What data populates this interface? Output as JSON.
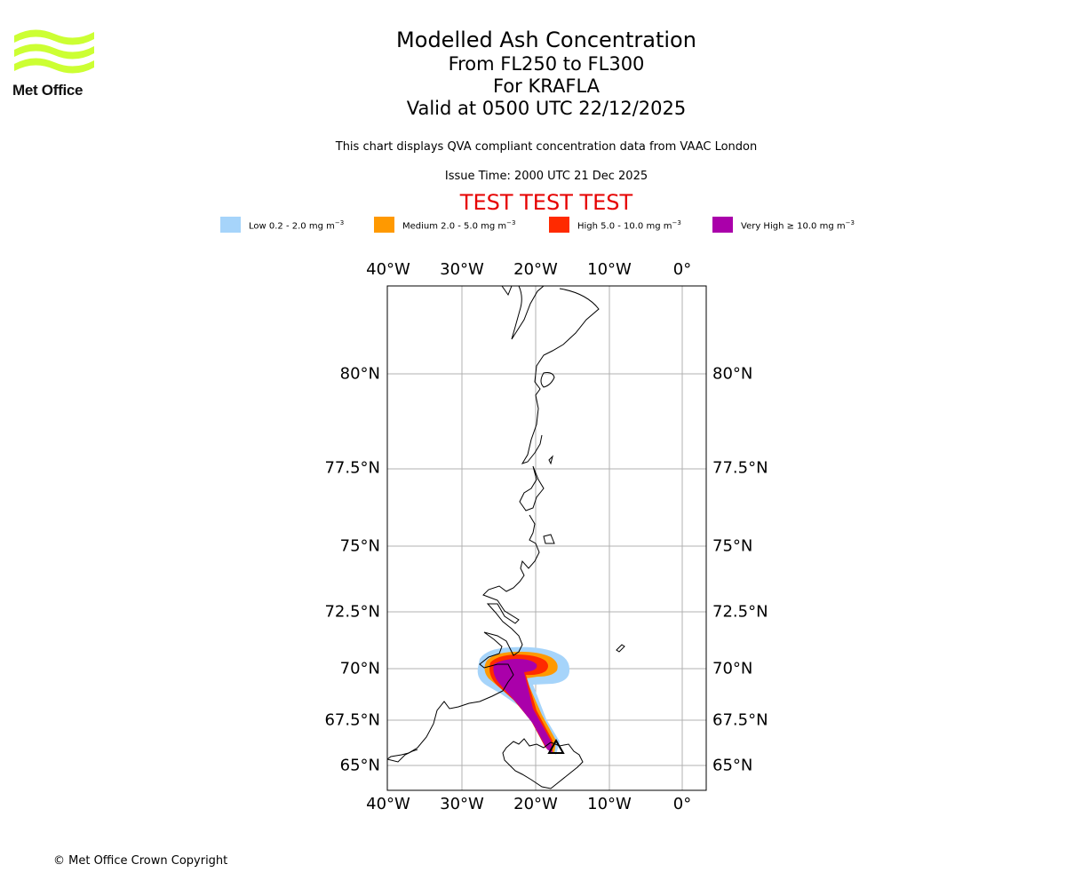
{
  "logo": {
    "text": "Met Office",
    "color": "#ccff33"
  },
  "title": {
    "line1": "Modelled Ash Concentration",
    "line2": "From FL250 to FL300",
    "line3": "For KRAFLA",
    "line4": "Valid at 0500 UTC 22/12/2025"
  },
  "info_line": "This chart displays QVA compliant concentration data from VAAC London",
  "issue_time": "Issue Time: 2000 UTC 21 Dec 2025",
  "test_banner": "TEST TEST TEST",
  "legend": [
    {
      "label": "Low 0.2 - 2.0 mg m",
      "color": "#a6d4fa"
    },
    {
      "label": "Medium 2.0 - 5.0 mg m",
      "color": "#ff9900"
    },
    {
      "label": "High 5.0 - 10.0 mg m",
      "color": "#ff2a00"
    },
    {
      "label": "Very High ≥ 10.0 mg m",
      "color": "#aa00aa"
    }
  ],
  "legend_unit_exponent": "−3",
  "map": {
    "longitude_ticks": [
      "40°W",
      "30°W",
      "20°W",
      "10°W",
      "0°"
    ],
    "latitude_ticks": [
      "80°N",
      "77.5°N",
      "75°N",
      "72.5°N",
      "70°N",
      "67.5°N",
      "65°N"
    ],
    "volcano_marker": "triangle",
    "grid": true
  },
  "copyright": "© Met Office Crown Copyright"
}
